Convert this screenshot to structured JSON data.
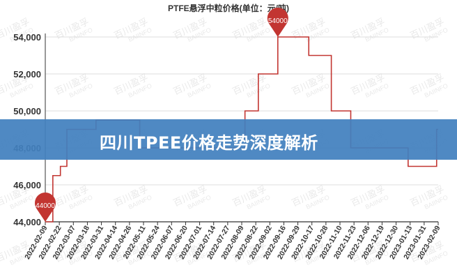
{
  "banner": {
    "title": "四川TPEE价格走势深度解析"
  },
  "watermark": {
    "line1": "百川盈孚",
    "line2": "BAIINFO"
  },
  "chart_data": {
    "type": "line",
    "step": true,
    "title": "PTFE悬浮中粒价格(单位：元/吨)",
    "xlabel": "",
    "ylabel": "",
    "ylim": [
      44000,
      54000
    ],
    "yticks": [
      44000,
      46000,
      48000,
      50000,
      52000,
      54000
    ],
    "ytick_labels": [
      "44,000",
      "46,000",
      "48,000",
      "50,000",
      "52,000",
      "54,000"
    ],
    "grid": true,
    "categories": [
      "2022-02-09",
      "2022-02-22",
      "2022-03-07",
      "2022-03-18",
      "2022-03-31",
      "2022-04-14",
      "2022-04-26",
      "2022-05-11",
      "2022-05-24",
      "2022-06-07",
      "2022-06-20",
      "2022-07-01",
      "2022-07-14",
      "2022-07-27",
      "2022-08-09",
      "2022-08-22",
      "2022-09-02",
      "2022-09-16",
      "2022-09-29",
      "2022-10-17",
      "2022-10-28",
      "2022-11-10",
      "2022-11-23",
      "2022-12-06",
      "2022-12-19",
      "2022-12-30",
      "2023-01-13",
      "2023-01-31",
      "2023-02-09"
    ],
    "series": [
      {
        "color": "#c23531",
        "points": [
          [
            "2022-02-09",
            44000
          ],
          [
            "2022-02-16",
            46500
          ],
          [
            "2022-02-23",
            47000
          ],
          [
            "2022-03-01",
            49000
          ],
          [
            "2022-03-26",
            49500
          ],
          [
            "2022-05-07",
            48000
          ],
          [
            "2022-08-12",
            50000
          ],
          [
            "2022-08-24",
            52000
          ],
          [
            "2022-09-10",
            54000
          ],
          [
            "2022-10-13",
            53000
          ],
          [
            "2022-11-02",
            50000
          ],
          [
            "2022-11-20",
            48000
          ],
          [
            "2023-01-11",
            47000
          ],
          [
            "2023-02-08",
            49000
          ],
          [
            "2023-02-09",
            49000
          ]
        ]
      }
    ],
    "annotations": [
      {
        "label": "54000",
        "x": "2022-09-10",
        "y": 54000,
        "kind": "max"
      },
      {
        "label": "44000",
        "x": "2022-02-09",
        "y": 44000,
        "kind": "min"
      }
    ]
  }
}
